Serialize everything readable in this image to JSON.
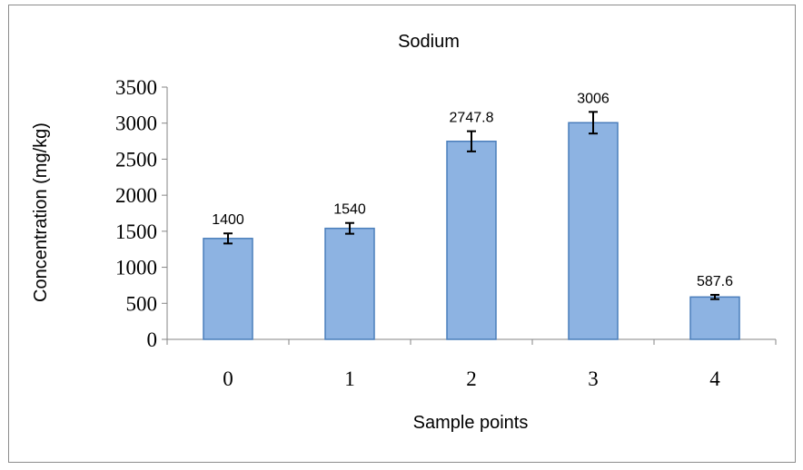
{
  "chart_data": {
    "type": "bar",
    "title": "Sodium",
    "xlabel": "Sample points",
    "ylabel": "Concentration (mg/kg)",
    "categories": [
      "0",
      "1",
      "2",
      "3",
      "4"
    ],
    "values": [
      1400,
      1540,
      2747.8,
      3006,
      587.6
    ],
    "data_labels": [
      "1400",
      "1540",
      "2747.8",
      "3006",
      "587.6"
    ],
    "error": [
      70,
      75,
      140,
      150,
      30
    ],
    "ylim": [
      0,
      3500
    ],
    "yticks": [
      0,
      500,
      1000,
      1500,
      2000,
      2500,
      3000,
      3500
    ],
    "ytick_labels": [
      "0",
      "500",
      "1000",
      "1500",
      "2000",
      "2500",
      "3000",
      "3500"
    ],
    "grid": false,
    "legend": "none",
    "colors": {
      "bar_fill": "#8db3e2",
      "bar_edge": "#4a7ebb",
      "error_bar": "#000000",
      "axis": "#868686",
      "frame": "#8c8c8c",
      "text": "#000000"
    }
  }
}
